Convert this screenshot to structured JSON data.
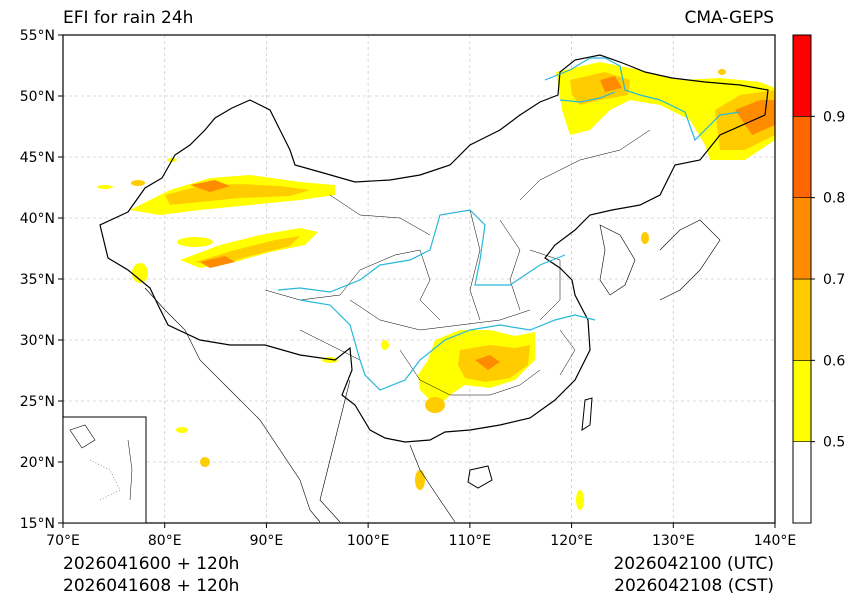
{
  "title": "EFI for rain 24h",
  "model": "CMA-GEPS",
  "init_utc": "2026041600 + 120h",
  "init_cst": "2026041608 + 120h",
  "valid_utc": "2026042100 (UTC)",
  "valid_cst": "2026042108 (CST)",
  "colors": {
    "frame": "#000000",
    "grid": "#cccccc",
    "river": "#27b8d8",
    "border": "#000000",
    "scale": [
      "#ffffff",
      "#ffff00",
      "#ffcc00",
      "#ff8c00",
      "#ff6600",
      "#ff0000"
    ]
  },
  "map": {
    "lon_range": [
      70,
      140
    ],
    "lat_range": [
      15,
      55
    ],
    "lon_ticks": [
      "70°E",
      "80°E",
      "90°E",
      "100°E",
      "110°E",
      "120°E",
      "130°E",
      "140°E"
    ],
    "lat_ticks": [
      "15°N",
      "20°N",
      "25°N",
      "30°N",
      "35°N",
      "40°N",
      "45°N",
      "50°N",
      "55°N"
    ]
  },
  "colorbar": {
    "levels": [
      0.5,
      0.6,
      0.7,
      0.8,
      0.9
    ],
    "labels": [
      "0.5",
      "0.6",
      "0.7",
      "0.8",
      "0.9"
    ]
  }
}
